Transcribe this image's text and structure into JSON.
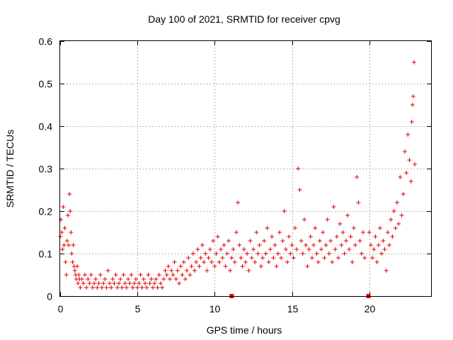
{
  "chart_data": {
    "type": "scatter",
    "title": "Day 100 of 2021, SRMTID for receiver cpvg",
    "xlabel": "GPS time / hours",
    "ylabel": "SRMTID / TECUs",
    "xlim": [
      0,
      24
    ],
    "ylim": [
      0,
      0.6
    ],
    "xticks": [
      0,
      5,
      10,
      15,
      20
    ],
    "yticks": [
      0,
      0.1,
      0.2,
      0.3,
      0.4,
      0.5,
      0.6
    ],
    "xtick_labels": [
      "0",
      "5",
      "10",
      "15",
      "20"
    ],
    "ytick_labels": [
      "0",
      "0.1",
      "0.2",
      "0.3",
      "0.4",
      "0.5",
      "0.6"
    ],
    "grid": true,
    "marker": "+",
    "series": [
      {
        "name": "SRMTID",
        "color": "#e00000",
        "points": [
          [
            0.0,
            0.14
          ],
          [
            0.05,
            0.18
          ],
          [
            0.1,
            0.15
          ],
          [
            0.15,
            0.11
          ],
          [
            0.2,
            0.21
          ],
          [
            0.25,
            0.12
          ],
          [
            0.3,
            0.16
          ],
          [
            0.35,
            0.08
          ],
          [
            0.4,
            0.05
          ],
          [
            0.45,
            0.13
          ],
          [
            0.5,
            0.19
          ],
          [
            0.55,
            0.12
          ],
          [
            0.6,
            0.24
          ],
          [
            0.65,
            0.2
          ],
          [
            0.7,
            0.15
          ],
          [
            0.75,
            0.1
          ],
          [
            0.8,
            0.08
          ],
          [
            0.85,
            0.12
          ],
          [
            0.9,
            0.07
          ],
          [
            0.95,
            0.06
          ],
          [
            1.0,
            0.05
          ],
          [
            1.05,
            0.04
          ],
          [
            1.1,
            0.07
          ],
          [
            1.15,
            0.03
          ],
          [
            1.2,
            0.05
          ],
          [
            1.25,
            0.04
          ],
          [
            1.3,
            0.02
          ],
          [
            1.4,
            0.04
          ],
          [
            1.5,
            0.03
          ],
          [
            1.6,
            0.05
          ],
          [
            1.7,
            0.02
          ],
          [
            1.8,
            0.04
          ],
          [
            1.9,
            0.03
          ],
          [
            2.0,
            0.05
          ],
          [
            2.1,
            0.02
          ],
          [
            2.2,
            0.03
          ],
          [
            2.3,
            0.04
          ],
          [
            2.4,
            0.02
          ],
          [
            2.5,
            0.03
          ],
          [
            2.6,
            0.05
          ],
          [
            2.7,
            0.02
          ],
          [
            2.8,
            0.03
          ],
          [
            2.9,
            0.04
          ],
          [
            3.0,
            0.02
          ],
          [
            3.1,
            0.06
          ],
          [
            3.2,
            0.03
          ],
          [
            3.3,
            0.02
          ],
          [
            3.4,
            0.04
          ],
          [
            3.5,
            0.03
          ],
          [
            3.6,
            0.05
          ],
          [
            3.7,
            0.02
          ],
          [
            3.8,
            0.03
          ],
          [
            3.9,
            0.04
          ],
          [
            4.0,
            0.02
          ],
          [
            4.1,
            0.05
          ],
          [
            4.2,
            0.03
          ],
          [
            4.3,
            0.02
          ],
          [
            4.4,
            0.04
          ],
          [
            4.5,
            0.03
          ],
          [
            4.6,
            0.05
          ],
          [
            4.7,
            0.02
          ],
          [
            4.8,
            0.03
          ],
          [
            4.9,
            0.04
          ],
          [
            5.0,
            0.02
          ],
          [
            5.1,
            0.03
          ],
          [
            5.2,
            0.05
          ],
          [
            5.3,
            0.02
          ],
          [
            5.4,
            0.04
          ],
          [
            5.5,
            0.03
          ],
          [
            5.6,
            0.02
          ],
          [
            5.7,
            0.05
          ],
          [
            5.8,
            0.03
          ],
          [
            5.9,
            0.04
          ],
          [
            6.0,
            0.02
          ],
          [
            6.1,
            0.03
          ],
          [
            6.2,
            0.04
          ],
          [
            6.3,
            0.02
          ],
          [
            6.4,
            0.05
          ],
          [
            6.5,
            0.03
          ],
          [
            6.6,
            0.02
          ],
          [
            6.7,
            0.04
          ],
          [
            6.8,
            0.06
          ],
          [
            6.9,
            0.05
          ],
          [
            7.0,
            0.07
          ],
          [
            7.1,
            0.04
          ],
          [
            7.2,
            0.06
          ],
          [
            7.3,
            0.05
          ],
          [
            7.4,
            0.08
          ],
          [
            7.5,
            0.04
          ],
          [
            7.6,
            0.06
          ],
          [
            7.7,
            0.03
          ],
          [
            7.8,
            0.07
          ],
          [
            7.9,
            0.05
          ],
          [
            8.0,
            0.08
          ],
          [
            8.1,
            0.04
          ],
          [
            8.2,
            0.06
          ],
          [
            8.3,
            0.09
          ],
          [
            8.4,
            0.05
          ],
          [
            8.5,
            0.07
          ],
          [
            8.6,
            0.1
          ],
          [
            8.7,
            0.06
          ],
          [
            8.8,
            0.08
          ],
          [
            8.9,
            0.11
          ],
          [
            9.0,
            0.07
          ],
          [
            9.1,
            0.09
          ],
          [
            9.2,
            0.12
          ],
          [
            9.3,
            0.08
          ],
          [
            9.4,
            0.1
          ],
          [
            9.5,
            0.06
          ],
          [
            9.6,
            0.09
          ],
          [
            9.7,
            0.11
          ],
          [
            9.8,
            0.08
          ],
          [
            9.9,
            0.13
          ],
          [
            10.0,
            0.07
          ],
          [
            10.1,
            0.1
          ],
          [
            10.2,
            0.14
          ],
          [
            10.3,
            0.08
          ],
          [
            10.4,
            0.11
          ],
          [
            10.5,
            0.09
          ],
          [
            10.6,
            0.12
          ],
          [
            10.7,
            0.07
          ],
          [
            10.8,
            0.1
          ],
          [
            10.9,
            0.13
          ],
          [
            11.0,
            0.06
          ],
          [
            11.1,
            0.09
          ],
          [
            11.2,
            0.11
          ],
          [
            11.3,
            0.08
          ],
          [
            11.4,
            0.15
          ],
          [
            11.5,
            0.22
          ],
          [
            11.6,
            0.12
          ],
          [
            11.7,
            0.09
          ],
          [
            11.8,
            0.07
          ],
          [
            11.9,
            0.11
          ],
          [
            12.0,
            0.08
          ],
          [
            12.1,
            0.1
          ],
          [
            12.2,
            0.06
          ],
          [
            12.3,
            0.13
          ],
          [
            12.4,
            0.09
          ],
          [
            12.5,
            0.11
          ],
          [
            12.6,
            0.08
          ],
          [
            12.7,
            0.15
          ],
          [
            12.8,
            0.1
          ],
          [
            12.9,
            0.12
          ],
          [
            13.0,
            0.07
          ],
          [
            13.1,
            0.09
          ],
          [
            13.2,
            0.13
          ],
          [
            13.3,
            0.1
          ],
          [
            13.4,
            0.16
          ],
          [
            13.5,
            0.08
          ],
          [
            13.6,
            0.11
          ],
          [
            13.7,
            0.14
          ],
          [
            13.8,
            0.09
          ],
          [
            13.9,
            0.12
          ],
          [
            14.0,
            0.07
          ],
          [
            14.1,
            0.1
          ],
          [
            14.2,
            0.15
          ],
          [
            14.3,
            0.09
          ],
          [
            14.4,
            0.13
          ],
          [
            14.5,
            0.2
          ],
          [
            14.6,
            0.11
          ],
          [
            14.7,
            0.08
          ],
          [
            14.8,
            0.14
          ],
          [
            14.9,
            0.1
          ],
          [
            15.0,
            0.12
          ],
          [
            15.1,
            0.09
          ],
          [
            15.2,
            0.16
          ],
          [
            15.3,
            0.11
          ],
          [
            15.4,
            0.3
          ],
          [
            15.5,
            0.25
          ],
          [
            15.6,
            0.13
          ],
          [
            15.7,
            0.1
          ],
          [
            15.8,
            0.18
          ],
          [
            15.9,
            0.12
          ],
          [
            16.0,
            0.07
          ],
          [
            16.1,
            0.11
          ],
          [
            16.2,
            0.14
          ],
          [
            16.3,
            0.09
          ],
          [
            16.4,
            0.12
          ],
          [
            16.5,
            0.16
          ],
          [
            16.6,
            0.1
          ],
          [
            16.7,
            0.08
          ],
          [
            16.8,
            0.13
          ],
          [
            16.9,
            0.11
          ],
          [
            17.0,
            0.15
          ],
          [
            17.1,
            0.09
          ],
          [
            17.2,
            0.12
          ],
          [
            17.3,
            0.18
          ],
          [
            17.4,
            0.1
          ],
          [
            17.5,
            0.13
          ],
          [
            17.6,
            0.08
          ],
          [
            17.7,
            0.21
          ],
          [
            17.8,
            0.11
          ],
          [
            17.9,
            0.14
          ],
          [
            18.0,
            0.09
          ],
          [
            18.1,
            0.17
          ],
          [
            18.2,
            0.12
          ],
          [
            18.3,
            0.15
          ],
          [
            18.4,
            0.1
          ],
          [
            18.5,
            0.13
          ],
          [
            18.6,
            0.19
          ],
          [
            18.7,
            0.11
          ],
          [
            18.8,
            0.14
          ],
          [
            18.9,
            0.08
          ],
          [
            19.0,
            0.16
          ],
          [
            19.1,
            0.12
          ],
          [
            19.2,
            0.28
          ],
          [
            19.3,
            0.22
          ],
          [
            19.4,
            0.13
          ],
          [
            19.5,
            0.1
          ],
          [
            19.6,
            0.15
          ],
          [
            19.7,
            0.09
          ],
          [
            20.0,
            0.15
          ],
          [
            20.1,
            0.12
          ],
          [
            20.2,
            0.09
          ],
          [
            20.3,
            0.11
          ],
          [
            20.4,
            0.14
          ],
          [
            20.5,
            0.08
          ],
          [
            20.6,
            0.12
          ],
          [
            20.7,
            0.16
          ],
          [
            20.8,
            0.1
          ],
          [
            20.9,
            0.13
          ],
          [
            21.0,
            0.11
          ],
          [
            21.1,
            0.06
          ],
          [
            21.2,
            0.15
          ],
          [
            21.3,
            0.12
          ],
          [
            21.4,
            0.18
          ],
          [
            21.5,
            0.14
          ],
          [
            21.6,
            0.2
          ],
          [
            21.7,
            0.16
          ],
          [
            21.8,
            0.22
          ],
          [
            21.9,
            0.17
          ],
          [
            22.0,
            0.28
          ],
          [
            22.1,
            0.19
          ],
          [
            22.2,
            0.24
          ],
          [
            22.3,
            0.34
          ],
          [
            22.4,
            0.29
          ],
          [
            22.5,
            0.38
          ],
          [
            22.6,
            0.32
          ],
          [
            22.7,
            0.27
          ],
          [
            22.75,
            0.41
          ],
          [
            22.8,
            0.45
          ],
          [
            22.85,
            0.47
          ],
          [
            22.9,
            0.55
          ],
          [
            22.95,
            0.31
          ]
        ]
      }
    ],
    "gap_markers": [
      [
        11.1,
        0.0
      ],
      [
        19.95,
        0.0
      ]
    ]
  }
}
